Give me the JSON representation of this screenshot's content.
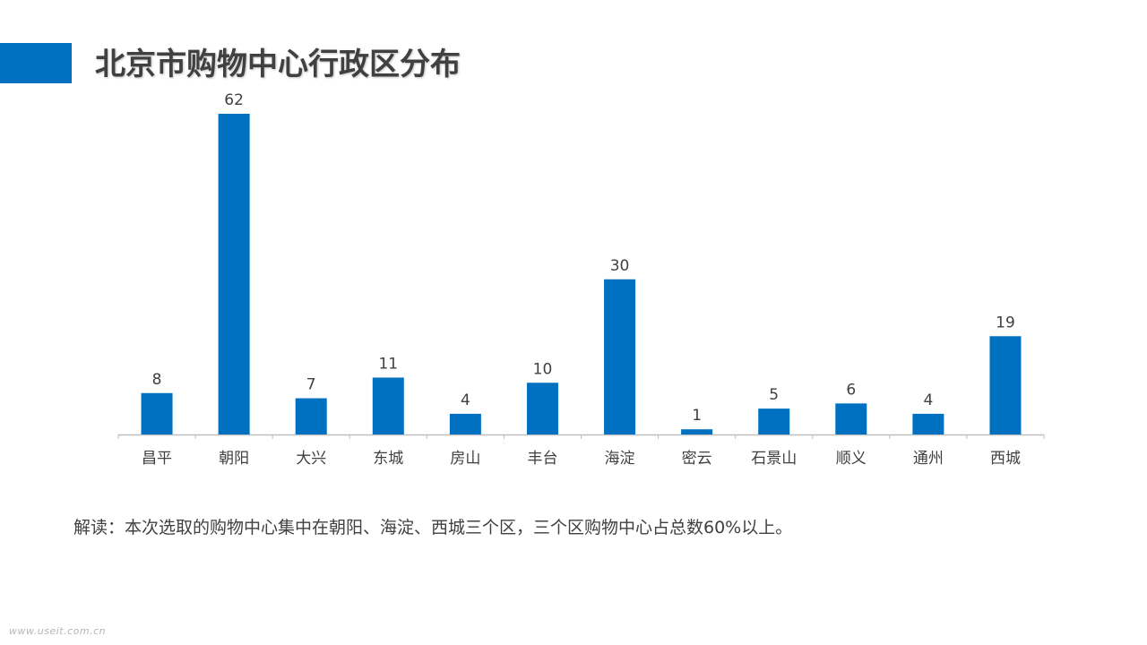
{
  "slide": {
    "title": "北京市购物中心行政区分布",
    "note": "解读：本次选取的购物中心集中在朝阳、海淀、西城三个区，三个区购物中心占总数60%以上。",
    "watermark": "www.useit.com.cn"
  },
  "colors": {
    "accent": "#0070c0",
    "bar": "#0070c0",
    "axis": "#bfbfbf",
    "text": "#404040"
  },
  "chart_data": {
    "type": "bar",
    "categories": [
      "昌平",
      "朝阳",
      "大兴",
      "东城",
      "房山",
      "丰台",
      "海淀",
      "密云",
      "石景山",
      "顺义",
      "通州",
      "西城"
    ],
    "values": [
      8,
      62,
      7,
      11,
      4,
      10,
      30,
      1,
      5,
      6,
      4,
      19
    ],
    "ylim": [
      0,
      62
    ],
    "grid": false,
    "legend": "none",
    "data_labels": true
  }
}
